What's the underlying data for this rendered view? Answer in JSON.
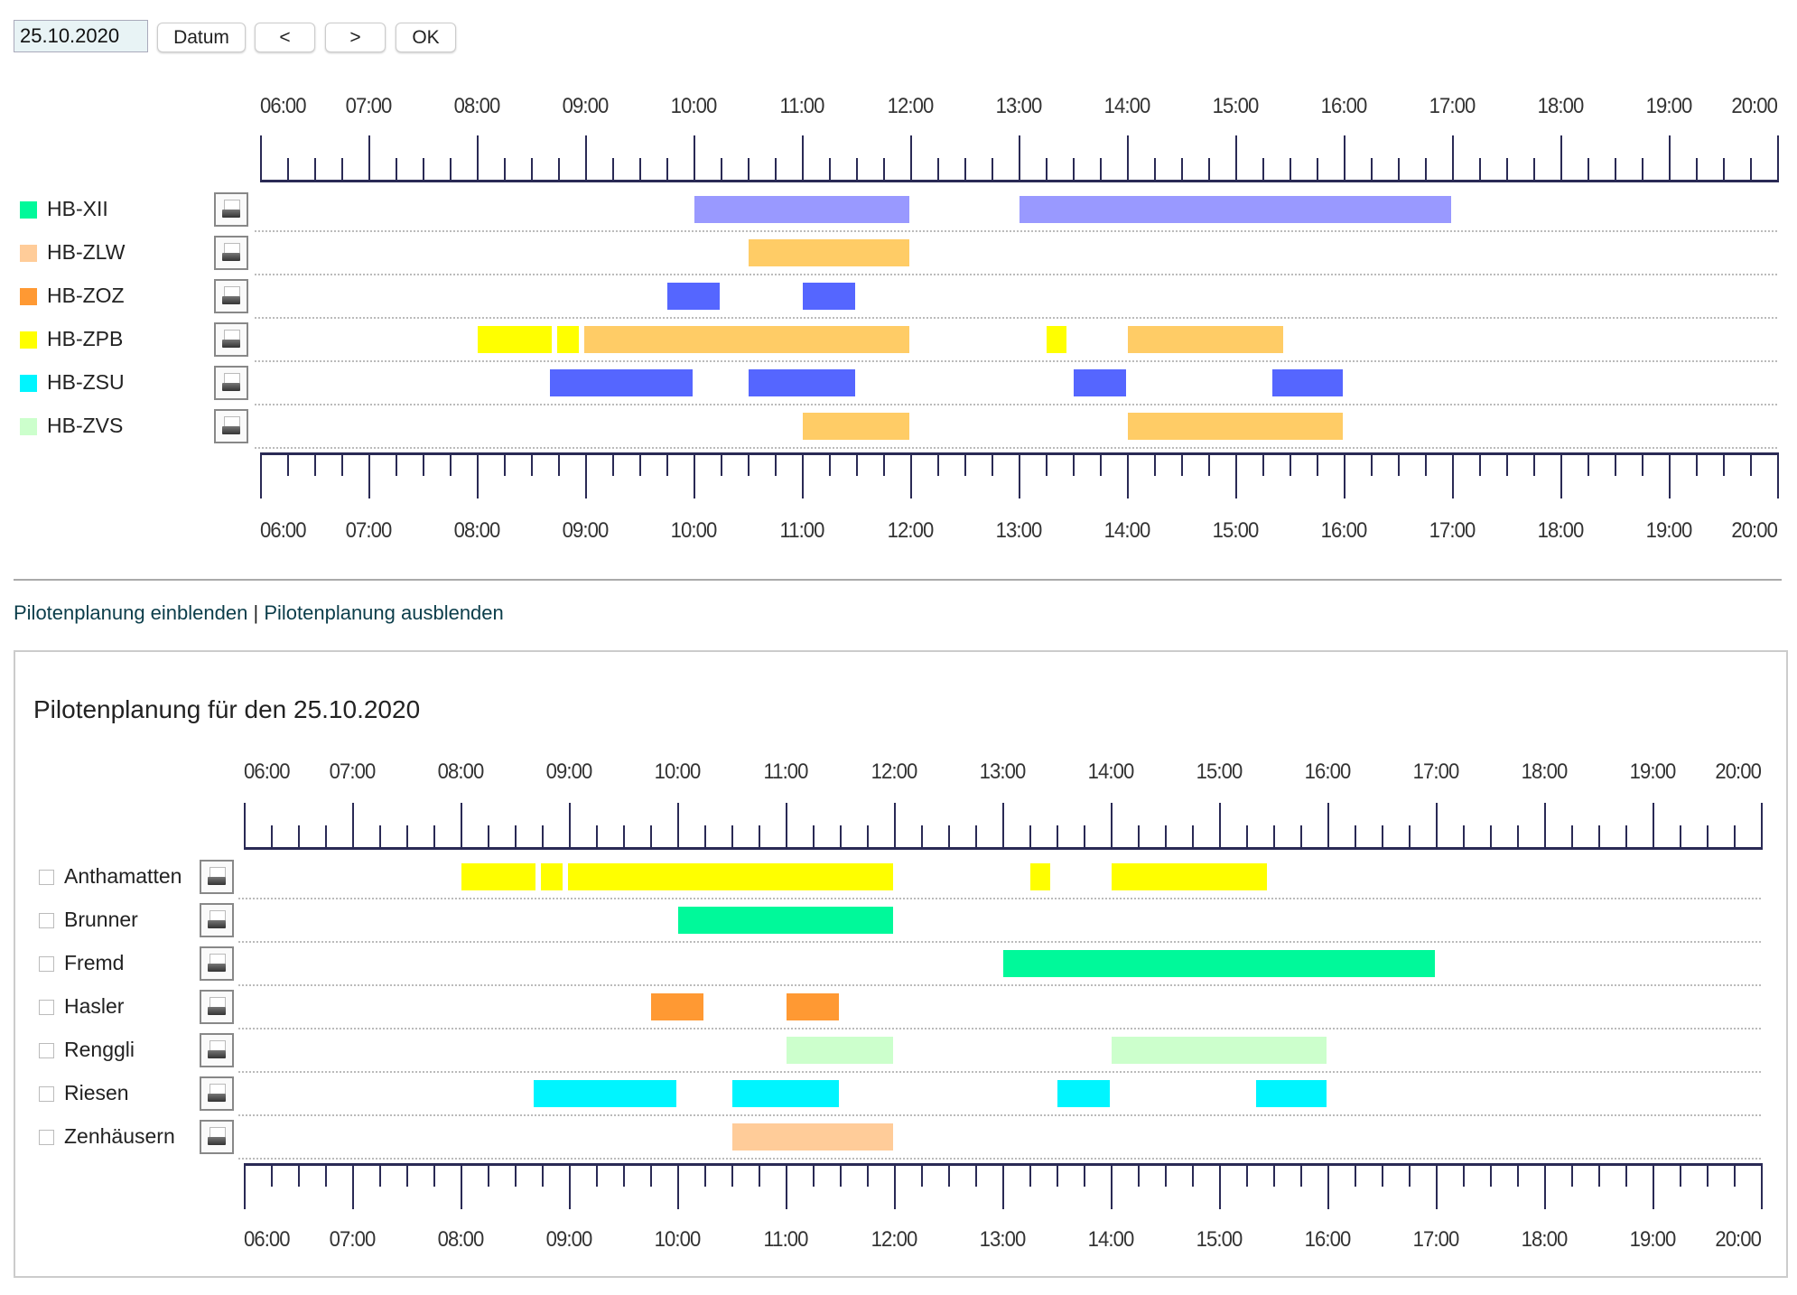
{
  "toolbar": {
    "date_value": "25.10.2020",
    "datum_label": "Datum",
    "prev_label": "<",
    "next_label": ">",
    "ok_label": "OK"
  },
  "axis_labels": [
    "06:00",
    "07:00",
    "08:00",
    "09:00",
    "10:00",
    "11:00",
    "12:00",
    "13:00",
    "14:00",
    "15:00",
    "16:00",
    "17:00",
    "18:00",
    "19:00",
    "20:00"
  ],
  "colors": {
    "lavender": "#9999ff",
    "orange_light": "#ffcc66",
    "blue": "#5566ff",
    "yellow": "#ffff00",
    "green": "#00f99a",
    "orange": "#ff9933",
    "mint": "#ccffcc",
    "cyan": "#00f5ff",
    "peach": "#ffcc99"
  },
  "aircraft": [
    {
      "label": "HB-XII",
      "legend_color": "#00f99a",
      "bars": [
        {
          "start": "10:00",
          "end": "12:00",
          "color": "#9999ff"
        },
        {
          "start": "13:00",
          "end": "17:00",
          "color": "#9999ff"
        }
      ]
    },
    {
      "label": "HB-ZLW",
      "legend_color": "#ffcc99",
      "bars": [
        {
          "start": "10:30",
          "end": "12:00",
          "color": "#ffcc66"
        }
      ]
    },
    {
      "label": "HB-ZOZ",
      "legend_color": "#ff9933",
      "bars": [
        {
          "start": "09:45",
          "end": "10:15",
          "color": "#5566ff"
        },
        {
          "start": "11:00",
          "end": "11:30",
          "color": "#5566ff"
        }
      ]
    },
    {
      "label": "HB-ZPB",
      "legend_color": "#ffff00",
      "bars": [
        {
          "start": "08:00",
          "end": "08:42",
          "color": "#ffff00"
        },
        {
          "start": "08:44",
          "end": "08:57",
          "color": "#ffff00"
        },
        {
          "start": "08:59",
          "end": "12:00",
          "color": "#ffcc66"
        },
        {
          "start": "13:15",
          "end": "13:27",
          "color": "#ffff00"
        },
        {
          "start": "14:00",
          "end": "15:27",
          "color": "#ffcc66"
        }
      ]
    },
    {
      "label": "HB-ZSU",
      "legend_color": "#00f5ff",
      "bars": [
        {
          "start": "08:40",
          "end": "10:00",
          "color": "#5566ff"
        },
        {
          "start": "10:30",
          "end": "11:30",
          "color": "#5566ff"
        },
        {
          "start": "13:30",
          "end": "14:00",
          "color": "#5566ff"
        },
        {
          "start": "15:20",
          "end": "16:00",
          "color": "#5566ff"
        }
      ]
    },
    {
      "label": "HB-ZVS",
      "legend_color": "#ccffcc",
      "bars": [
        {
          "start": "11:00",
          "end": "12:00",
          "color": "#ffcc66"
        },
        {
          "start": "14:00",
          "end": "16:00",
          "color": "#ffcc66"
        }
      ]
    }
  ],
  "links": {
    "show": "Pilotenplanung einblenden",
    "separator": "|",
    "hide": "Pilotenplanung ausblenden"
  },
  "planning": {
    "title": "Pilotenplanung für den 25.10.2020",
    "pilots": [
      {
        "label": "Anthamatten",
        "bars": [
          {
            "start": "08:00",
            "end": "08:42",
            "color": "#ffff00"
          },
          {
            "start": "08:44",
            "end": "08:57",
            "color": "#ffff00"
          },
          {
            "start": "08:59",
            "end": "12:00",
            "color": "#ffff00"
          },
          {
            "start": "13:15",
            "end": "13:27",
            "color": "#ffff00"
          },
          {
            "start": "14:00",
            "end": "15:27",
            "color": "#ffff00"
          }
        ]
      },
      {
        "label": "Brunner",
        "bars": [
          {
            "start": "10:00",
            "end": "12:00",
            "color": "#00f99a"
          }
        ]
      },
      {
        "label": "Fremd",
        "bars": [
          {
            "start": "13:00",
            "end": "17:00",
            "color": "#00f99a"
          }
        ]
      },
      {
        "label": "Hasler",
        "bars": [
          {
            "start": "09:45",
            "end": "10:15",
            "color": "#ff9933"
          },
          {
            "start": "11:00",
            "end": "11:30",
            "color": "#ff9933"
          }
        ]
      },
      {
        "label": "Renggli",
        "bars": [
          {
            "start": "11:00",
            "end": "12:00",
            "color": "#ccffcc"
          },
          {
            "start": "14:00",
            "end": "16:00",
            "color": "#ccffcc"
          }
        ]
      },
      {
        "label": "Riesen",
        "bars": [
          {
            "start": "08:40",
            "end": "10:00",
            "color": "#00f5ff"
          },
          {
            "start": "10:30",
            "end": "11:30",
            "color": "#00f5ff"
          },
          {
            "start": "13:30",
            "end": "14:00",
            "color": "#00f5ff"
          },
          {
            "start": "15:20",
            "end": "16:00",
            "color": "#00f5ff"
          }
        ]
      },
      {
        "label": "Zenhäusern",
        "bars": [
          {
            "start": "10:30",
            "end": "12:00",
            "color": "#ffcc99"
          }
        ]
      }
    ]
  }
}
